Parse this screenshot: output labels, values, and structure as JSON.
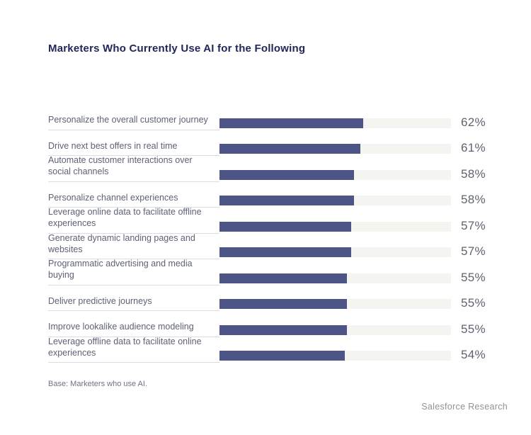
{
  "chart_data": {
    "type": "bar",
    "orientation": "horizontal",
    "title": "Marketers Who Currently Use AI for the Following",
    "categories": [
      "Personalize the overall customer journey",
      "Drive next best offers in real time",
      "Automate customer interactions over social channels",
      "Personalize channel experiences",
      "Leverage online data to facilitate offline experiences",
      "Generate dynamic landing pages and websites",
      "Programmatic advertising and media buying",
      "Deliver predictive journeys",
      "Improve lookalike audience modeling",
      "Leverage offline data to facilitate online experiences"
    ],
    "values": [
      62,
      61,
      58,
      58,
      57,
      57,
      55,
      55,
      55,
      54
    ],
    "value_suffix": "%",
    "xlim": [
      0,
      100
    ],
    "grid": false,
    "legend": "none",
    "base_note": "Base: Marketers who use AI.",
    "source": "Salesforce Research",
    "colors": {
      "bar_fill": "#4d5587",
      "bar_track": "#f4f4f1",
      "title_text": "#23265a",
      "label_text": "#5d6275",
      "value_text": "#5f6370",
      "rule_line": "#dcdce2"
    }
  }
}
